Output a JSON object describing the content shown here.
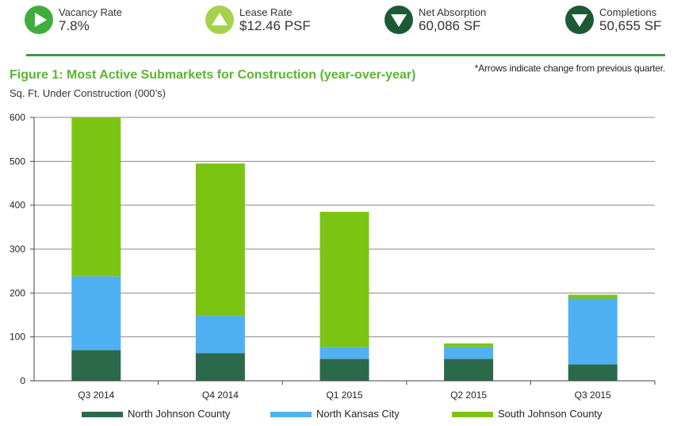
{
  "kpis": [
    {
      "label": "Vacancy Rate",
      "value": "7.8%",
      "icon": "arrow-right-icon",
      "color": "#3fae3f"
    },
    {
      "label": "Lease Rate",
      "value": "$12.46 PSF",
      "icon": "arrow-up-icon",
      "color": "#a6d14b"
    },
    {
      "label": "Net Absorption",
      "value": "60,086 SF",
      "icon": "arrow-down-icon",
      "color": "#1c5a36"
    },
    {
      "label": "Completions",
      "value": "50,655 SF",
      "icon": "arrow-down-icon",
      "color": "#1c5a36"
    }
  ],
  "note": "*Arrows indicate change from previous quarter.",
  "chart_data": {
    "type": "bar",
    "stacked": true,
    "title": "Figure 1: Most Active Submarkets for Construction (year-over-year)",
    "ylabel": "Sq. Ft. Under Construction (000’s)",
    "xlabel": "",
    "ylim": [
      0,
      600
    ],
    "yticks": [
      0,
      100,
      200,
      300,
      400,
      500,
      600
    ],
    "grid": true,
    "legend": "bottom",
    "categories": [
      "Q3 2014",
      "Q4 2014",
      "Q1 2015",
      "Q2 2015",
      "Q3 2015"
    ],
    "series": [
      {
        "name": "North Johnson County",
        "color": "#2a6a4a",
        "values": [
          70,
          63,
          50,
          50,
          37
        ]
      },
      {
        "name": "North Kansas City",
        "color": "#4fb0f2",
        "values": [
          168,
          85,
          27,
          27,
          150
        ]
      },
      {
        "name": "South Johnson County",
        "color": "#7cc414",
        "values": [
          362,
          347,
          308,
          8,
          9
        ]
      }
    ]
  }
}
